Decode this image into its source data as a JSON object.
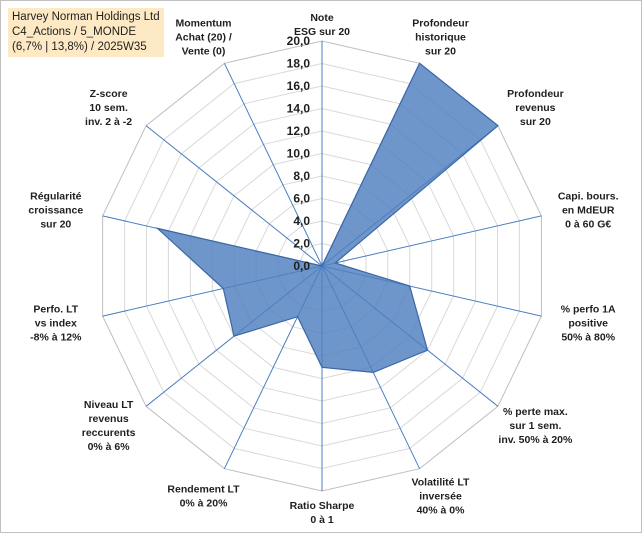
{
  "header": {
    "line1": "Harvey Norman Holdings Ltd",
    "line2": "C4_Actions / 5_MONDE",
    "line3": "(6,7% | 13,8%) / 2025W35"
  },
  "colors": {
    "fill": "#4f7fbf",
    "stroke": "#3a67a6",
    "grid": "#d9d9d9",
    "spoke": "#4a7fc1"
  },
  "chart_data": {
    "type": "radar",
    "title": "Harvey Norman Holdings Ltd",
    "rmax": 20,
    "tick_step": 2,
    "tick_labels": [
      "0,0",
      "2,0",
      "4,0",
      "6,0",
      "8,0",
      "10,0",
      "12,0",
      "14,0",
      "16,0",
      "18,0",
      "20,0"
    ],
    "axes": [
      {
        "label": [
          "Note",
          "ESG sur 20"
        ],
        "value": 0
      },
      {
        "label": [
          "Profondeur",
          "historique",
          "sur 20"
        ],
        "value": 20
      },
      {
        "label": [
          "Profondeur",
          "revenus",
          "sur 20"
        ],
        "value": 20
      },
      {
        "label": [
          "Capi. bours.",
          "en MdEUR",
          "0 à 60 G€"
        ],
        "value": 1.2
      },
      {
        "label": [
          "% perfo 1A",
          "positive",
          "50% à 80%"
        ],
        "value": 8
      },
      {
        "label": [
          "% perte max.",
          "sur 1 sem.",
          "inv. 50% à 20%"
        ],
        "value": 12
      },
      {
        "label": [
          "Volatilité LT",
          "inversée",
          "40% à 0%"
        ],
        "value": 10.5
      },
      {
        "label": [
          "Ratio Sharpe",
          "0 à 1"
        ],
        "value": 9
      },
      {
        "label": [
          "Rendement LT",
          "0% à 20%"
        ],
        "value": 5
      },
      {
        "label": [
          "Niveau LT",
          "revenus",
          "reccurents",
          "0% à 6%"
        ],
        "value": 10
      },
      {
        "label": [
          "Perfo. LT",
          "vs index",
          "-8% à 12%"
        ],
        "value": 9
      },
      {
        "label": [
          "Régularité",
          "croissance",
          "sur 20"
        ],
        "value": 15
      },
      {
        "label": [
          "Z-score",
          "10 sem.",
          "inv. 2 à -2"
        ],
        "value": 0
      },
      {
        "label": [
          "Momentum",
          "Achat (20) /",
          "Vente (0)"
        ],
        "value": 0
      }
    ]
  }
}
